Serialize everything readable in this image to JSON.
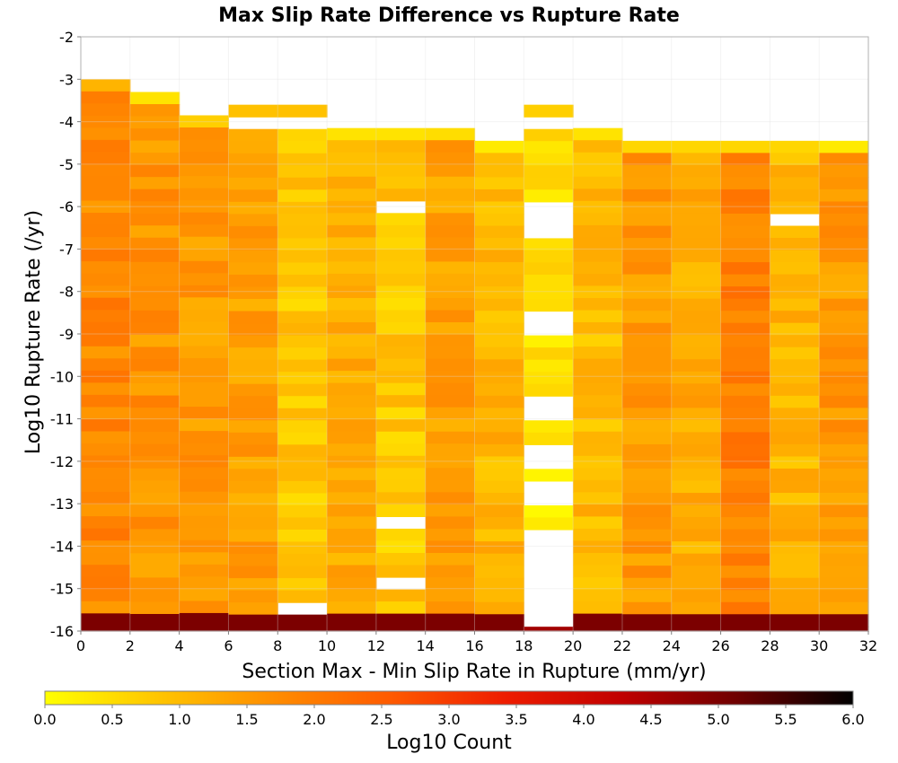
{
  "chart_data": {
    "type": "heatmap",
    "title": "Max Slip Rate Difference vs Rupture Rate",
    "xlabel": "Section Max - Min Slip Rate in Rupture (mm/yr)",
    "ylabel": "Log10 Rupture Rate (/yr)",
    "xlim": [
      0,
      32
    ],
    "ylim": [
      -16,
      -2
    ],
    "x_ticks": [
      "0",
      "2",
      "4",
      "6",
      "8",
      "10",
      "12",
      "14",
      "16",
      "18",
      "20",
      "22",
      "24",
      "26",
      "28",
      "30",
      "32"
    ],
    "y_ticks": [
      "-2",
      "-3",
      "-4",
      "-5",
      "-6",
      "-7",
      "-8",
      "-9",
      "-10",
      "-11",
      "-12",
      "-13",
      "-14",
      "-15",
      "-16"
    ],
    "x_bin_edges": [
      0,
      2,
      4,
      6,
      8,
      10,
      12,
      14,
      16,
      18,
      20,
      22,
      24,
      26,
      28,
      30,
      32
    ],
    "y_bin_width": 0.286,
    "colorbar": {
      "label": "Log10 Count",
      "range": [
        0,
        6
      ],
      "ticks": [
        "0.0",
        "0.5",
        "1.0",
        "1.5",
        "2.0",
        "2.5",
        "3.0",
        "3.5",
        "4.0",
        "4.5",
        "5.0",
        "5.5",
        "6.0"
      ],
      "colormap": [
        "#ffff00",
        "#ffc400",
        "#ff8c00",
        "#ff5a00",
        "#ee1c00",
        "#c00000",
        "#6e0000",
        "#000000"
      ]
    },
    "columns": [
      {
        "x": [
          0,
          2
        ],
        "ymax": -3.0,
        "top_value": 1.1,
        "main_value": 1.8,
        "bottom_value": 5.0,
        "gaps": []
      },
      {
        "x": [
          2,
          4
        ],
        "ymax": -3.3,
        "top_value": 0.4,
        "main_value": 1.6,
        "bottom_value": 5.0,
        "gaps": []
      },
      {
        "x": [
          4,
          6
        ],
        "ymax": -3.85,
        "top_value": 0.7,
        "main_value": 1.5,
        "bottom_value": 5.0,
        "gaps": []
      },
      {
        "x": [
          6,
          8
        ],
        "ymax": -3.6,
        "top_value": 0.9,
        "main_value": 1.4,
        "bottom_value": 5.0,
        "gaps": [
          [
            -4.15,
            -3.9
          ]
        ]
      },
      {
        "x": [
          8,
          10
        ],
        "ymax": -3.6,
        "top_value": 0.9,
        "main_value": 0.8,
        "bottom_value": 5.0,
        "gaps": [
          [
            -4.15,
            -3.9
          ],
          [
            -15.6,
            -15.3
          ]
        ]
      },
      {
        "x": [
          10,
          12
        ],
        "ymax": -4.15,
        "top_value": 0.4,
        "main_value": 1.2,
        "bottom_value": 5.0,
        "gaps": []
      },
      {
        "x": [
          12,
          14
        ],
        "ymax": -4.15,
        "top_value": 0.4,
        "main_value": 0.8,
        "bottom_value": 5.0,
        "gaps": [
          [
            -6.15,
            -5.85
          ],
          [
            -13.6,
            -13.3
          ],
          [
            -15.0,
            -14.75
          ]
        ]
      },
      {
        "x": [
          14,
          16
        ],
        "ymax": -4.15,
        "top_value": 0.5,
        "main_value": 1.4,
        "bottom_value": 5.0,
        "gaps": []
      },
      {
        "x": [
          16,
          18
        ],
        "ymax": -4.45,
        "top_value": 0.3,
        "main_value": 1.1,
        "bottom_value": 5.0,
        "gaps": []
      },
      {
        "x": [
          18,
          20
        ],
        "ymax": -3.6,
        "top_value": 0.7,
        "main_value": 0.4,
        "bottom_value": 4.6,
        "gaps": [
          [
            -4.15,
            -3.9
          ],
          [
            -6.7,
            -5.85
          ],
          [
            -8.9,
            -8.6
          ],
          [
            -11.1,
            -10.5
          ],
          [
            -12.3,
            -11.7
          ],
          [
            -12.9,
            -12.6
          ],
          [
            -15.9,
            -13.6
          ]
        ]
      },
      {
        "x": [
          20,
          22
        ],
        "ymax": -4.15,
        "top_value": 0.4,
        "main_value": 1.0,
        "bottom_value": 5.0,
        "gaps": []
      },
      {
        "x": [
          22,
          24
        ],
        "ymax": -4.45,
        "top_value": 0.6,
        "main_value": 1.5,
        "bottom_value": 5.0,
        "gaps": []
      },
      {
        "x": [
          24,
          26
        ],
        "ymax": -4.45,
        "top_value": 0.6,
        "main_value": 1.2,
        "bottom_value": 5.0,
        "gaps": []
      },
      {
        "x": [
          26,
          28
        ],
        "ymax": -4.45,
        "top_value": 0.6,
        "main_value": 1.9,
        "bottom_value": 5.0,
        "gaps": []
      },
      {
        "x": [
          28,
          30
        ],
        "ymax": -4.45,
        "top_value": 0.6,
        "main_value": 1.1,
        "bottom_value": 5.0,
        "gaps": [
          [
            -6.45,
            -6.15
          ]
        ]
      },
      {
        "x": [
          30,
          32
        ],
        "ymax": -4.45,
        "top_value": 0.3,
        "main_value": 1.5,
        "bottom_value": 5.0,
        "gaps": []
      }
    ]
  }
}
